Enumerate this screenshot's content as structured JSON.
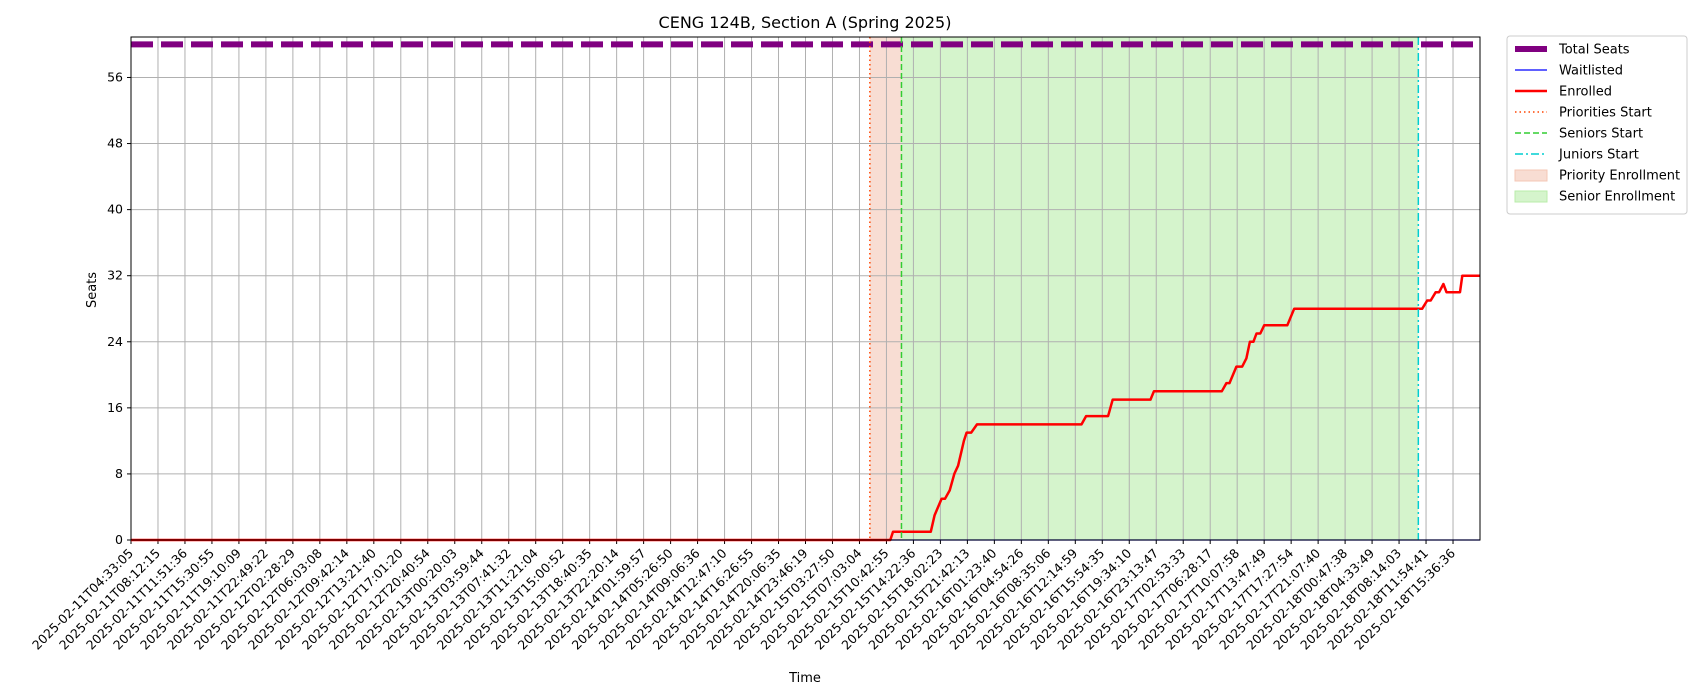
{
  "chart_data": {
    "type": "line",
    "title": "CENG 124B, Section A (Spring 2025)",
    "xlabel": "Time",
    "ylabel": "Seats",
    "ylim": [
      0,
      60.9
    ],
    "yticks": [
      0,
      8,
      16,
      24,
      32,
      40,
      48,
      56
    ],
    "grid": true,
    "legend_position": "outside upper right",
    "x_tick_labels": [
      "2025-02-11T04:33:05",
      "2025-02-11T08:12:15",
      "2025-02-11T11:51:36",
      "2025-02-11T15:30:55",
      "2025-02-11T19:10:09",
      "2025-02-11T22:49:22",
      "2025-02-12T02:28:29",
      "2025-02-12T06:03:08",
      "2025-02-12T09:42:14",
      "2025-02-12T13:21:40",
      "2025-02-12T17:01:20",
      "2025-02-12T20:40:54",
      "2025-02-13T00:20:03",
      "2025-02-13T03:59:44",
      "2025-02-13T07:41:32",
      "2025-02-13T11:21:04",
      "2025-02-13T15:00:52",
      "2025-02-13T18:40:35",
      "2025-02-13T22:20:14",
      "2025-02-14T01:59:57",
      "2025-02-14T05:26:50",
      "2025-02-14T09:06:36",
      "2025-02-14T12:47:10",
      "2025-02-14T16:26:55",
      "2025-02-14T20:06:35",
      "2025-02-14T23:46:19",
      "2025-02-15T03:27:50",
      "2025-02-15T07:03:04",
      "2025-02-15T10:42:55",
      "2025-02-15T14:22:36",
      "2025-02-15T18:02:23",
      "2025-02-15T21:42:13",
      "2025-02-16T01:23:40",
      "2025-02-16T04:54:26",
      "2025-02-16T08:35:06",
      "2025-02-16T12:14:59",
      "2025-02-16T15:54:35",
      "2025-02-16T19:34:10",
      "2025-02-16T23:13:47",
      "2025-02-17T02:53:33",
      "2025-02-17T06:28:17",
      "2025-02-17T10:07:58",
      "2025-02-17T13:47:49",
      "2025-02-17T17:27:54",
      "2025-02-17T21:07:40",
      "2025-02-18T00:47:38",
      "2025-02-18T04:33:49",
      "2025-02-18T08:14:03",
      "2025-02-18T11:54:41",
      "2025-02-18T15:36:36"
    ],
    "x_tick_step": 7,
    "x_max_index": 350,
    "series": [
      {
        "name": "Total Seats",
        "color": "#800080",
        "style": "dashed-thick",
        "points": [
          [
            0,
            60
          ],
          [
            350,
            60
          ]
        ]
      },
      {
        "name": "Waitlisted",
        "color": "#0000ff",
        "style": "solid-thin",
        "points": [
          [
            0,
            0
          ],
          [
            350,
            0
          ]
        ]
      },
      {
        "name": "Enrolled",
        "color": "#ff0000",
        "style": "solid",
        "points": [
          [
            0,
            0
          ],
          [
            197,
            0
          ],
          [
            197.7,
            1
          ],
          [
            207.5,
            1
          ],
          [
            208.5,
            3
          ],
          [
            210.3,
            5
          ],
          [
            211.2,
            5
          ],
          [
            212.4,
            6
          ],
          [
            213.6,
            8
          ],
          [
            214.6,
            9
          ],
          [
            216.1,
            12
          ],
          [
            216.8,
            13
          ],
          [
            218,
            13
          ],
          [
            219.5,
            14
          ],
          [
            246.6,
            14
          ],
          [
            247.8,
            15
          ],
          [
            253.5,
            15
          ],
          [
            254.7,
            17
          ],
          [
            264.5,
            17
          ],
          [
            265.4,
            18
          ],
          [
            283,
            18
          ],
          [
            284.2,
            19
          ],
          [
            285,
            19
          ],
          [
            286.8,
            21
          ],
          [
            288.3,
            21
          ],
          [
            289.4,
            22
          ],
          [
            290.3,
            24
          ],
          [
            291.2,
            24
          ],
          [
            292,
            25
          ],
          [
            293,
            25
          ],
          [
            294,
            26
          ],
          [
            300,
            26
          ],
          [
            301.8,
            28
          ],
          [
            334.3,
            28
          ],
          [
            335,
            28
          ],
          [
            336.3,
            29
          ],
          [
            337.2,
            29
          ],
          [
            338.5,
            30
          ],
          [
            339.4,
            30
          ],
          [
            340.5,
            31
          ],
          [
            341.3,
            30
          ],
          [
            344.8,
            30
          ],
          [
            345.4,
            32
          ],
          [
            350,
            32
          ]
        ]
      },
      {
        "name": "Priorities Start",
        "color": "#ff4500",
        "style": "dotted-vertical",
        "x": 191.7
      },
      {
        "name": "Seniors Start",
        "color": "#32cd32",
        "style": "dashed-vertical",
        "x": 199.9
      },
      {
        "name": "Juniors Start",
        "color": "#00ced1",
        "style": "dashdot-vertical",
        "x": 334
      }
    ],
    "spans": [
      {
        "name": "Priority Enrollment",
        "from": 191.7,
        "to": 199.9,
        "color": "#f4c7b6"
      },
      {
        "name": "Senior Enrollment",
        "from": 199.9,
        "to": 334,
        "color": "#b9ecaa"
      }
    ]
  }
}
